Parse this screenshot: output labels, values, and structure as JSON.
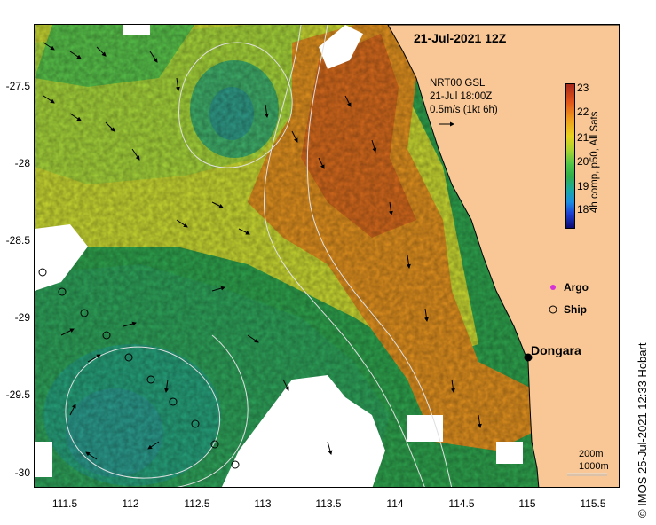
{
  "map": {
    "title": "21-Jul-2021 12Z",
    "current_legend": {
      "line1": "NRT00 GSL",
      "line2": "21-Jul 18:00Z",
      "line3": "0.5m/s (1kt 6h)"
    },
    "colorbar": {
      "label": "4h comp, p50, All Sats",
      "ticks": [
        "23",
        "22",
        "21",
        "20",
        "19",
        "18"
      ],
      "range": [
        17.6,
        23.1
      ]
    },
    "markers": {
      "argo": "Argo",
      "ship": "Ship"
    },
    "place": "Dongara",
    "depth_contours": {
      "shallow": "200m",
      "deep": "1000m"
    },
    "credit": "© IMOS 25-Jul-2021 12:33 Hobart",
    "lat_ticks": [
      "-27.5",
      "-28",
      "-28.5",
      "-29",
      "-29.5",
      "-30"
    ],
    "lon_ticks": [
      "111.5",
      "112",
      "112.5",
      "113",
      "113.5",
      "114",
      "114.5",
      "115",
      "115.5"
    ],
    "colors": {
      "land": "#f9c795",
      "cloud": "#ffffff",
      "argo": "#d633d6"
    }
  }
}
